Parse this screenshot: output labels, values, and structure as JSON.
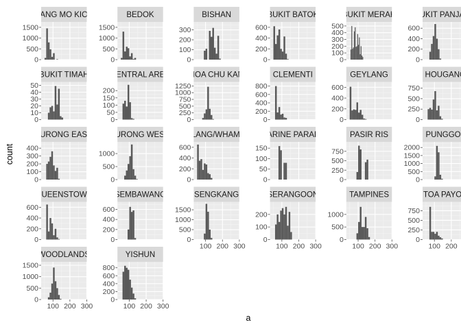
{
  "chart_data": {
    "type": "bar",
    "subtype": "faceted-histogram",
    "xlabel": "a",
    "ylabel": "count",
    "xlim": [
      30,
      300
    ],
    "x_ticks": [
      100,
      200,
      300
    ],
    "colors": {
      "bar": "#595959",
      "panel": "#ebebeb",
      "strip": "#d9d9d9",
      "grid_major": "#ffffff",
      "grid_minor": "#f4f4f4",
      "text": "#1a1a1a",
      "tick": "#4d4d4d"
    },
    "facets": [
      {
        "label": "ANG MO KIO",
        "ymax": 1750,
        "yticks": [
          0,
          500,
          1000,
          1500
        ],
        "x_start": 40,
        "bin": 10,
        "counts": [
          0,
          80,
          1450,
          800,
          480,
          130,
          300,
          0,
          20
        ]
      },
      {
        "label": "BEDOK",
        "ymax": 1750,
        "yticks": [
          0,
          500,
          1000,
          1500
        ],
        "x_start": 40,
        "bin": 10,
        "counts": [
          0,
          80,
          1300,
          380,
          600,
          530,
          150,
          300,
          30,
          80
        ]
      },
      {
        "label": "BISHAN",
        "ymax": 380,
        "yticks": [
          0,
          100,
          200,
          300
        ],
        "x_start": 40,
        "bin": 10,
        "counts": [
          0,
          0,
          0,
          0,
          0,
          90,
          110,
          0,
          290,
          230,
          320,
          120,
          60,
          240,
          10
        ]
      },
      {
        "label": "BUKIT BATOK",
        "ymax": 700,
        "yticks": [
          0,
          200,
          400,
          600
        ],
        "x_start": 40,
        "bin": 10,
        "counts": [
          0,
          620,
          290,
          450,
          560,
          200,
          150,
          430,
          110,
          10
        ]
      },
      {
        "label": "BUKIT MERAH",
        "ymax": 560,
        "yticks": [
          0,
          100,
          200,
          300,
          400,
          500
        ],
        "x_start": 40,
        "bin": 5,
        "counts": [
          0,
          0,
          0,
          150,
          500,
          160,
          180,
          420,
          480,
          190,
          200,
          380,
          220,
          330,
          80,
          200,
          60,
          40
        ]
      },
      {
        "label": "BUKIT PANJANG",
        "ymax": 720,
        "yticks": [
          0,
          200,
          400,
          600
        ],
        "x_start": 40,
        "bin": 10,
        "counts": [
          0,
          0,
          0,
          150,
          300,
          450,
          680,
          400,
          200,
          20
        ]
      },
      {
        "label": "BUKIT TIMAH",
        "ymax": 55,
        "yticks": [
          0,
          10,
          20,
          30,
          40,
          50
        ],
        "x_start": 40,
        "bin": 10,
        "counts": [
          0,
          0,
          0,
          10,
          18,
          20,
          12,
          49,
          22,
          45,
          5,
          3
        ]
      },
      {
        "label": "CENTRAL AREA",
        "ymax": 260,
        "yticks": [
          0,
          50,
          100,
          150,
          200
        ],
        "x_start": 40,
        "bin": 10,
        "counts": [
          0,
          0,
          110,
          130,
          90,
          240,
          120,
          10,
          5
        ]
      },
      {
        "label": "CHOA CHU KANG",
        "ymax": 1400,
        "yticks": [
          0,
          250,
          500,
          750,
          1000,
          1250
        ],
        "x_start": 40,
        "bin": 10,
        "counts": [
          0,
          0,
          0,
          0,
          60,
          230,
          380,
          1220,
          400,
          170,
          20
        ]
      },
      {
        "label": "CLEMENTI",
        "ymax": 900,
        "yticks": [
          0,
          200,
          400,
          600,
          800
        ],
        "x_start": 40,
        "bin": 10,
        "counts": [
          0,
          0,
          800,
          170,
          300,
          120,
          140,
          50,
          40
        ]
      },
      {
        "label": "GEYLANG",
        "ymax": 700,
        "yticks": [
          0,
          200,
          400,
          600
        ],
        "x_start": 40,
        "bin": 10,
        "counts": [
          0,
          610,
          170,
          190,
          180,
          320,
          130,
          180,
          90,
          20,
          10
        ]
      },
      {
        "label": "HOUGANG",
        "ymax": 900,
        "yticks": [
          0,
          250,
          500,
          750
        ],
        "x_start": 40,
        "bin": 10,
        "counts": [
          0,
          0,
          250,
          280,
          240,
          480,
          680,
          220,
          330,
          80,
          20
        ]
      },
      {
        "label": "JURONG EAST",
        "ymax": 480,
        "yticks": [
          0,
          100,
          200,
          300,
          400
        ],
        "x_start": 40,
        "bin": 10,
        "counts": [
          0,
          0,
          200,
          230,
          290,
          360,
          180,
          110,
          150,
          10
        ]
      },
      {
        "label": "JURONG WEST",
        "ymax": 1450,
        "yticks": [
          0,
          500,
          1000
        ],
        "x_start": 40,
        "bin": 10,
        "counts": [
          0,
          0,
          0,
          150,
          350,
          600,
          900,
          1350,
          400,
          150,
          20
        ]
      },
      {
        "label": "KALLANG/WHAMPOA",
        "ymax": 700,
        "yticks": [
          0,
          200,
          400,
          600
        ],
        "x_start": 40,
        "bin": 10,
        "counts": [
          0,
          650,
          350,
          380,
          180,
          300,
          280,
          120,
          100,
          30
        ]
      },
      {
        "label": "MARINE PARADE",
        "ymax": 180,
        "yticks": [
          0,
          50,
          100,
          150
        ],
        "x_start": 40,
        "bin": 10,
        "counts": [
          0,
          0,
          0,
          0,
          160,
          140,
          0,
          80,
          80,
          0
        ]
      },
      {
        "label": "PASIR RIS",
        "ymax": 1000,
        "yticks": [
          0,
          250,
          500,
          750
        ],
        "x_start": 40,
        "bin": 10,
        "counts": [
          0,
          0,
          0,
          0,
          0,
          200,
          900,
          800,
          0,
          0,
          460,
          530,
          0
        ]
      },
      {
        "label": "PUNGGOL",
        "ymax": 2350,
        "yticks": [
          0,
          500,
          1000,
          1500,
          2000
        ],
        "x_start": 40,
        "bin": 10,
        "counts": [
          0,
          0,
          0,
          0,
          0,
          0,
          200,
          2100,
          1700,
          300,
          50
        ]
      },
      {
        "label": "QUEENSTOWN",
        "ymax": 700,
        "yticks": [
          0,
          200,
          400,
          600
        ],
        "x_start": 40,
        "bin": 10,
        "counts": [
          0,
          0,
          650,
          150,
          400,
          300,
          80,
          200,
          40,
          10
        ]
      },
      {
        "label": "SEMBAWANG",
        "ymax": 750,
        "yticks": [
          0,
          200,
          400,
          600
        ],
        "x_start": 40,
        "bin": 10,
        "counts": [
          0,
          0,
          0,
          0,
          0,
          200,
          650,
          550,
          580,
          30
        ]
      },
      {
        "label": "SENGKANG",
        "ymax": 1900,
        "yticks": [
          0,
          500,
          1000,
          1500
        ],
        "x_start": 40,
        "bin": 10,
        "counts": [
          0,
          0,
          0,
          0,
          0,
          300,
          1800,
          1400,
          500,
          80
        ]
      },
      {
        "label": "SERANGOON",
        "ymax": 300,
        "yticks": [
          0,
          100,
          200
        ],
        "x_start": 40,
        "bin": 10,
        "counts": [
          0,
          0,
          120,
          200,
          140,
          230,
          250,
          200,
          260,
          110,
          220,
          60
        ]
      },
      {
        "label": "TAMPINES",
        "ymax": 1500,
        "yticks": [
          0,
          500,
          1000
        ],
        "x_start": 40,
        "bin": 10,
        "counts": [
          0,
          0,
          0,
          0,
          0,
          250,
          700,
          1300,
          500,
          500,
          900,
          450,
          100
        ]
      },
      {
        "label": "TOA PAYOH",
        "ymax": 980,
        "yticks": [
          0,
          250,
          500,
          750
        ],
        "x_start": 40,
        "bin": 10,
        "counts": [
          0,
          0,
          0,
          850,
          200,
          200,
          150,
          200,
          100,
          60,
          30
        ]
      },
      {
        "label": "WOODLANDS",
        "ymax": 1650,
        "yticks": [
          0,
          500,
          1000,
          1500
        ],
        "x_start": 40,
        "bin": 10,
        "counts": [
          0,
          0,
          0,
          100,
          300,
          700,
          1400,
          800,
          500,
          200,
          30
        ]
      },
      {
        "label": "YISHUN",
        "ymax": 950,
        "yticks": [
          0,
          200,
          400,
          600,
          800
        ],
        "x_start": 40,
        "bin": 10,
        "counts": [
          0,
          0,
          700,
          850,
          800,
          750,
          500,
          300,
          150,
          30
        ]
      }
    ]
  }
}
